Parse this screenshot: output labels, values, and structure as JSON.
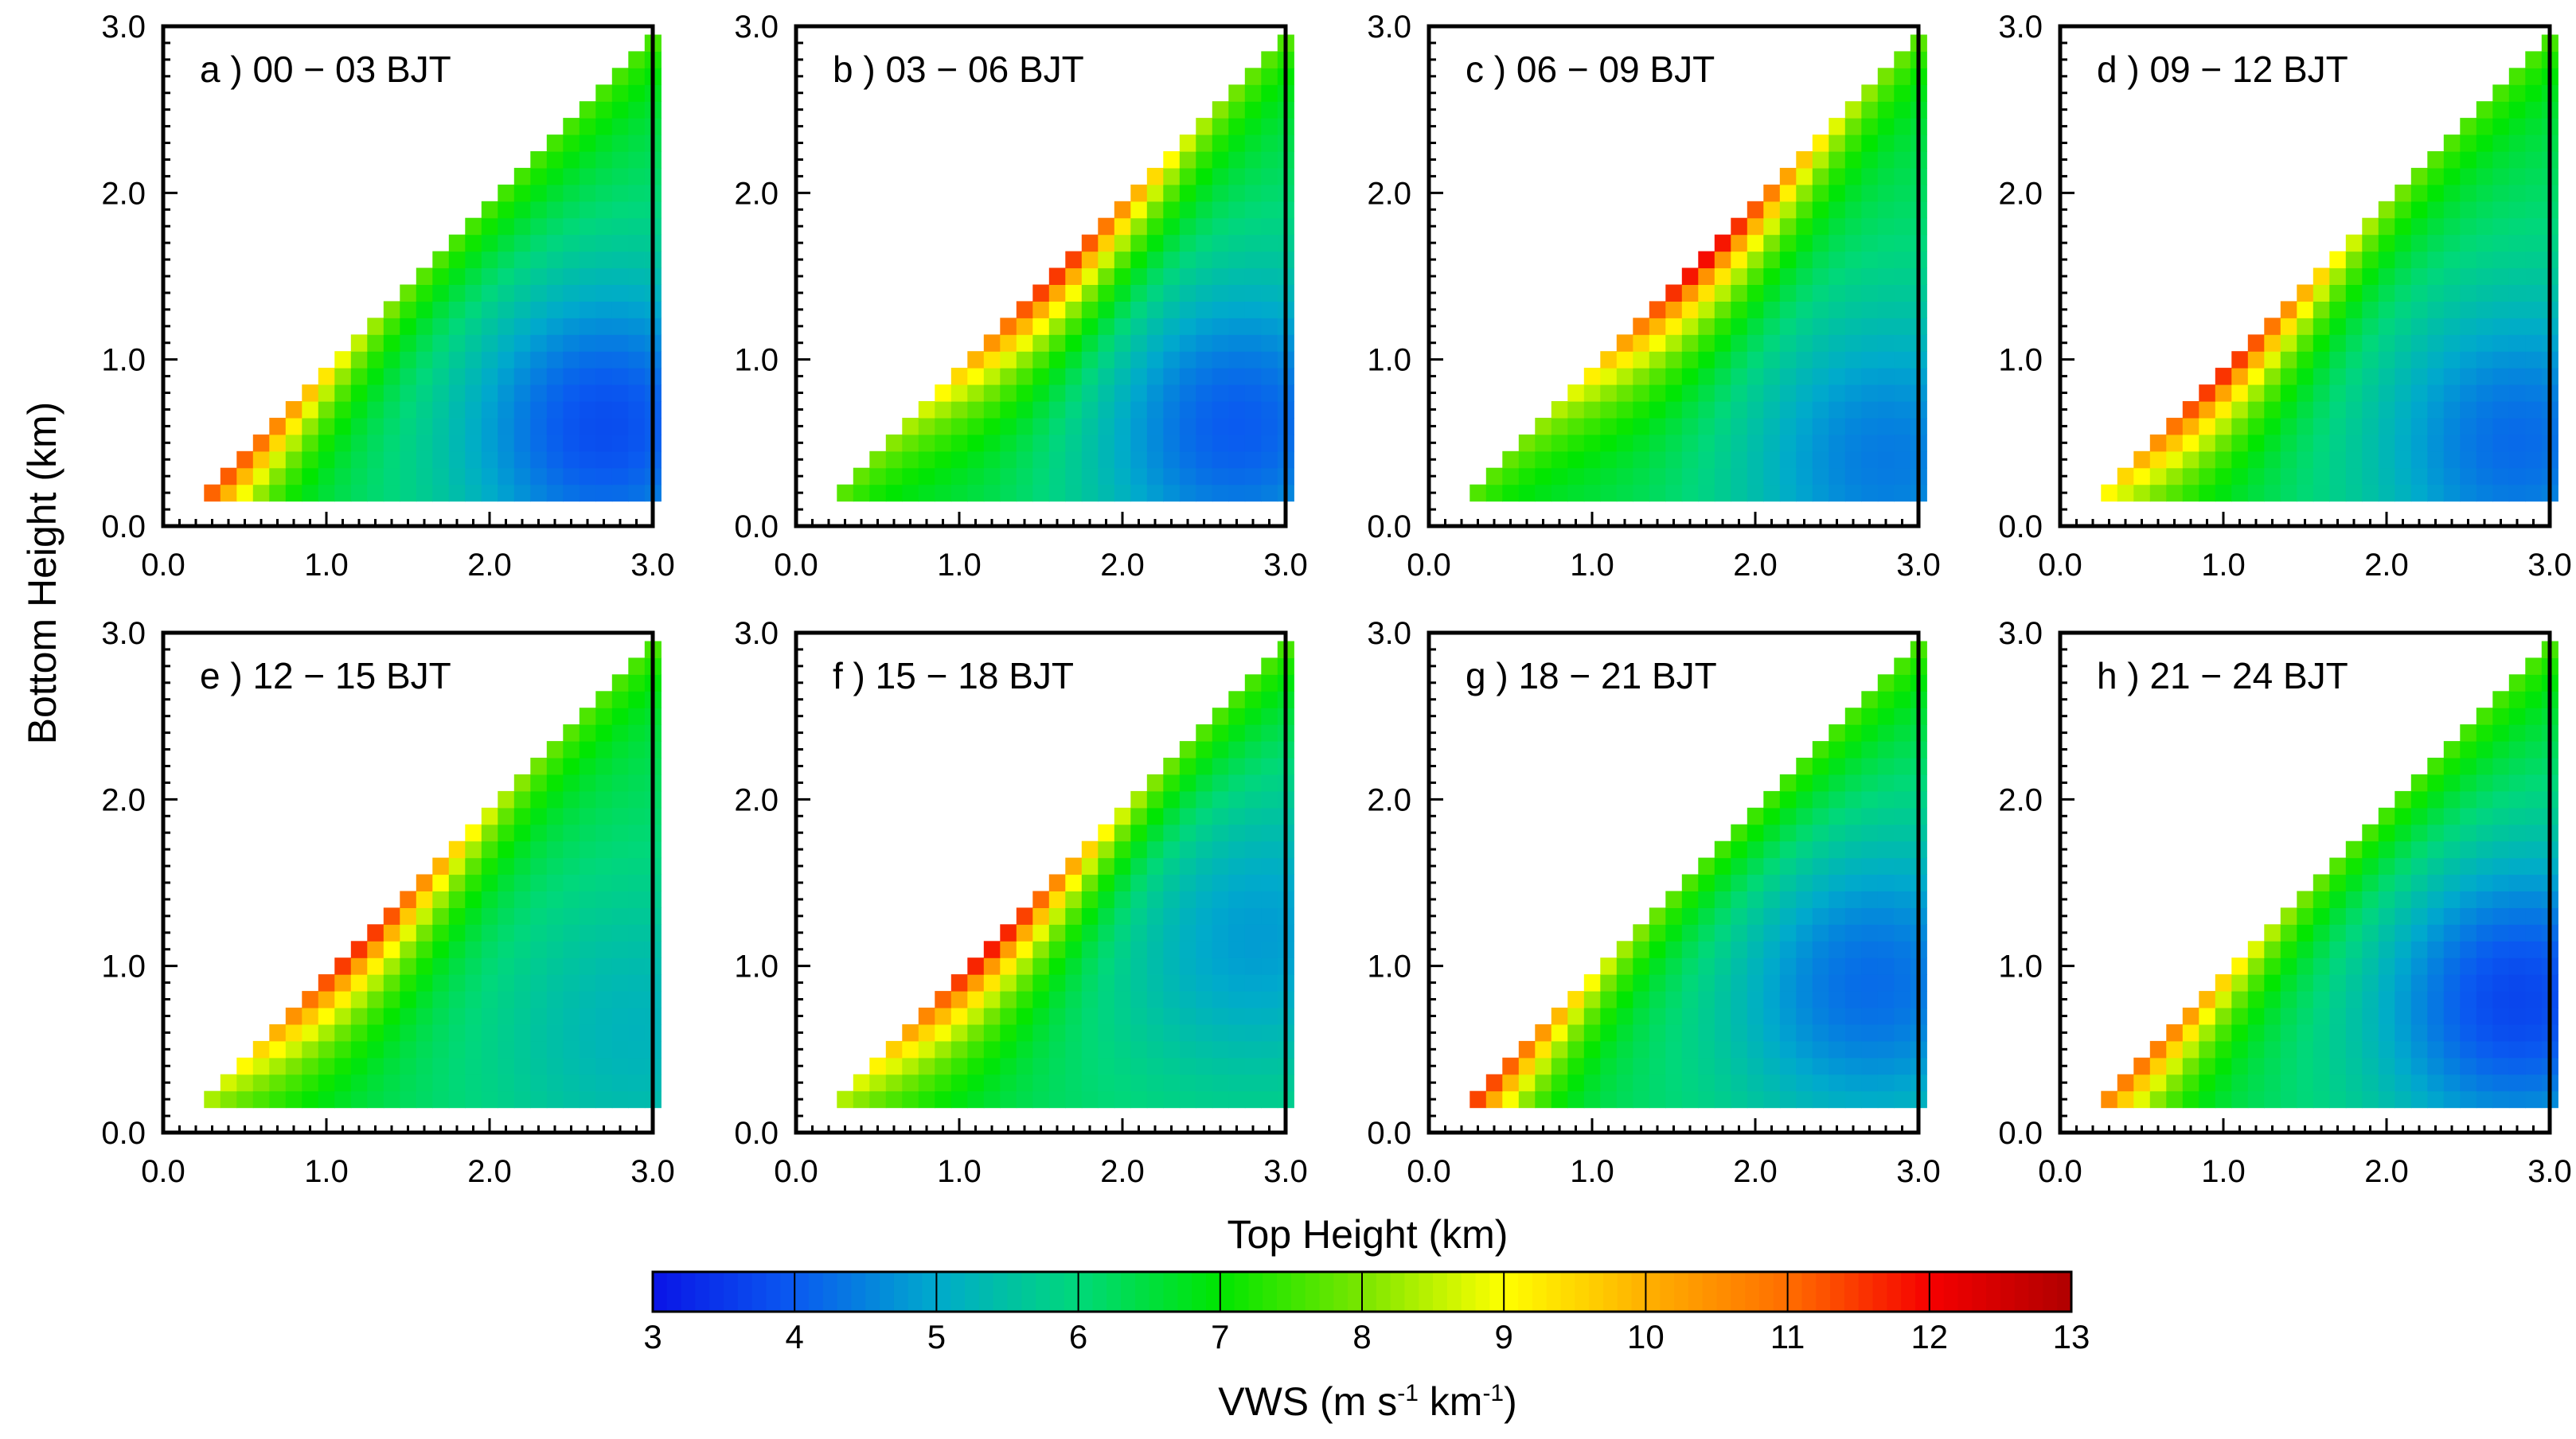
{
  "chart_data": {
    "type": "heatmap",
    "description_units": "km",
    "xlabel": "Top Height  (km)",
    "ylabel": "Bottom Height  (km)",
    "xlim": [
      0,
      3
    ],
    "ylim": [
      0,
      3
    ],
    "tick_labels": [
      "0.0",
      "1.0",
      "2.0",
      "3.0"
    ],
    "grid_step_km": 0.1,
    "colorbar": {
      "label_main": "VWS (m s",
      "label_exp1": "-1",
      "label_mid": " km",
      "label_exp2": "-1",
      "label_end": ")",
      "min": 3,
      "max": 13,
      "ticks": [
        "3",
        "4",
        "5",
        "6",
        "7",
        "8",
        "9",
        "10",
        "11",
        "12",
        "13"
      ],
      "colors": [
        "#0a14e6",
        "#0a5af0",
        "#00aacc",
        "#00d87a",
        "#00e600",
        "#7ae600",
        "#ffff00",
        "#ffb000",
        "#ff6e00",
        "#f50000",
        "#b00000"
      ]
    },
    "panels": [
      {
        "label": "a ) 00 − 03 BJT",
        "peak_vws": 11,
        "peak_at_top_km": 0.4,
        "low_vws": 3.6,
        "low_at": [
          2.7,
          0.6
        ]
      },
      {
        "label": "b ) 03 − 06 BJT",
        "peak_vws": 11.5,
        "peak_at_top_km": 1.6,
        "low_vws": 3.8,
        "low_at": [
          2.7,
          0.6
        ]
      },
      {
        "label": "c ) 06 − 09 BJT",
        "peak_vws": 12,
        "peak_at_top_km": 1.7,
        "low_vws": 4.2,
        "low_at": [
          2.8,
          0.4
        ]
      },
      {
        "label": "d ) 09 − 12 BJT",
        "peak_vws": 11.5,
        "peak_at_top_km": 1.0,
        "low_vws": 4.0,
        "low_at": [
          2.8,
          0.5
        ]
      },
      {
        "label": "e ) 12 − 15 BJT",
        "peak_vws": 11.5,
        "peak_at_top_km": 1.2,
        "low_vws": 5.0,
        "low_at": [
          2.9,
          0.6
        ]
      },
      {
        "label": "f ) 15 − 18 BJT",
        "peak_vws": 11.8,
        "peak_at_top_km": 1.2,
        "low_vws": 4.6,
        "low_at": [
          2.8,
          1.2
        ]
      },
      {
        "label": "g ) 18 − 21 BJT",
        "peak_vws": 11.3,
        "peak_at_top_km": 0.3,
        "low_vws": 4.0,
        "low_at": [
          2.7,
          0.9
        ]
      },
      {
        "label": "h ) 21 − 24 BJT",
        "peak_vws": 10.5,
        "peak_at_top_km": 0.5,
        "low_vws": 3.5,
        "low_at": [
          2.8,
          0.8
        ]
      }
    ]
  }
}
